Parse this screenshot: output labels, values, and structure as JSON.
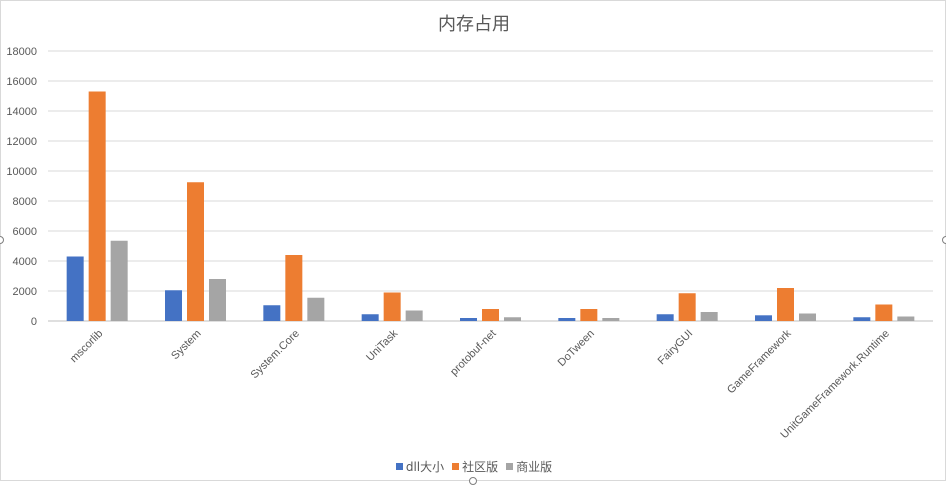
{
  "chart_data": {
    "type": "bar",
    "title": "内存占用",
    "categories": [
      "mscorlib",
      "System",
      "System.Core",
      "UniTask",
      "protobuf-net",
      "DoTween",
      "FairyGUI",
      "GameFramework",
      "UnitGameFramework.Runtime"
    ],
    "series": [
      {
        "name": "dll大小",
        "color": "#4472c4",
        "values": [
          4300,
          2050,
          1050,
          450,
          200,
          200,
          450,
          380,
          250
        ]
      },
      {
        "name": "社区版",
        "color": "#ed7d31",
        "values": [
          15300,
          9250,
          4400,
          1900,
          800,
          800,
          1850,
          2200,
          1100
        ]
      },
      {
        "name": "商业版",
        "color": "#a5a5a5",
        "values": [
          5350,
          2800,
          1550,
          700,
          250,
          200,
          600,
          500,
          300
        ]
      }
    ],
    "yticks": [
      0,
      2000,
      4000,
      6000,
      8000,
      10000,
      12000,
      14000,
      16000,
      18000
    ],
    "ylim": [
      0,
      18000
    ],
    "grid": true,
    "legend_position": "bottom"
  }
}
